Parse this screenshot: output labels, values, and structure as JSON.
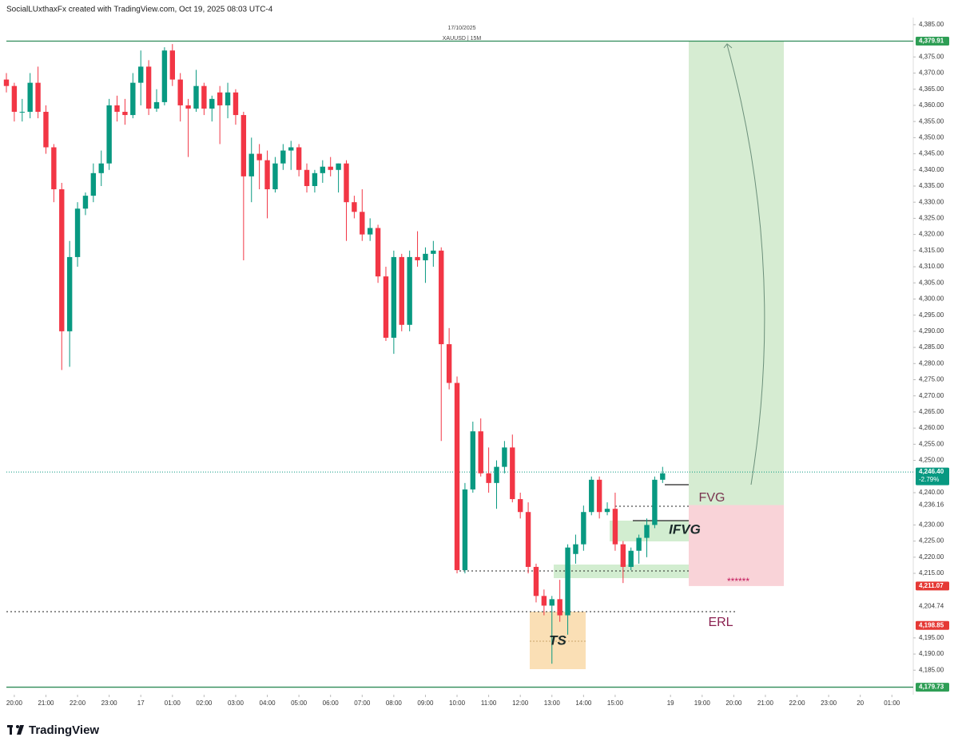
{
  "header": "SocialLUxthaxFx created with TradingView.com, Oct 19, 2025 08:03 UTC-4",
  "footer": "TradingView",
  "chart_data": {
    "type": "candlestick",
    "date": "17/10/2025",
    "symbol": "XAUUSD | 15M",
    "up_color": "#089981",
    "down_color": "#f23645",
    "annotations": {
      "fvg": "FVG",
      "ifvg": "IFVG",
      "erl": "ERL",
      "ts": "TS",
      "stars": "******"
    },
    "x": [
      -1,
      0,
      1,
      2,
      3,
      4,
      5,
      6,
      7,
      8,
      9,
      10,
      11,
      12,
      13,
      14,
      15,
      16,
      17,
      18,
      19,
      20,
      21,
      22,
      23,
      24,
      25,
      26,
      27,
      28,
      29,
      30,
      31,
      32,
      33,
      34,
      35,
      36,
      37,
      38,
      39,
      40,
      41,
      42,
      43,
      44,
      45,
      46,
      47,
      48,
      49,
      50,
      51,
      52,
      53,
      54,
      55,
      56,
      57,
      58,
      59,
      60,
      61,
      62,
      63,
      64,
      65,
      66,
      67,
      68,
      69,
      70,
      71,
      72,
      73,
      74,
      75,
      76,
      77,
      78,
      79,
      80,
      81,
      82
    ],
    "open": [
      4368,
      4366,
      4358,
      4358,
      4367,
      4358,
      4347,
      4334,
      4290,
      4313,
      4328,
      4332,
      4339,
      4342,
      4360,
      4358,
      4357,
      4367,
      4372,
      4359,
      4361,
      4377,
      4368,
      4360,
      4359,
      4366,
      4359,
      4364,
      4360,
      4364,
      4357,
      4338,
      4345,
      4343,
      4334,
      4342,
      4346,
      4347,
      4340,
      4335,
      4339,
      4341,
      4340,
      4342,
      4330,
      4327,
      4320,
      4322,
      4307,
      4288,
      4313,
      4292,
      4313,
      4312,
      4314,
      4315,
      4286,
      4274,
      4216,
      4241,
      4259,
      4246,
      4243,
      4248,
      4254,
      4238,
      4234,
      4217,
      4208,
      4205,
      4207,
      4202,
      4221,
      4224,
      4234,
      4244,
      4234,
      4235,
      4224,
      4217,
      4222,
      4226,
      4230,
      4244
    ],
    "high": [
      4370,
      4367,
      4362,
      4370,
      4372,
      4360,
      4348,
      4336,
      4318,
      4330,
      4333,
      4342,
      4346,
      4362,
      4363,
      4362,
      4370,
      4377,
      4374,
      4365,
      4378,
      4379,
      4370,
      4362,
      4371,
      4367,
      4363,
      4366,
      4367,
      4365,
      4358,
      4350,
      4348,
      4346,
      4344,
      4348,
      4349,
      4348,
      4342,
      4340,
      4343,
      4344,
      4342,
      4343,
      4332,
      4334,
      4325,
      4323,
      4310,
      4315,
      4314,
      4315,
      4321,
      4316,
      4318,
      4316,
      4291,
      4276,
      4243,
      4262,
      4263,
      4254,
      4250,
      4256,
      4258,
      4240,
      4237,
      4218,
      4210,
      4208,
      4213,
      4224,
      4227,
      4236,
      4245,
      4245,
      4237,
      4240,
      4225,
      4223,
      4227,
      4232,
      4245,
      4248
    ],
    "low": [
      4364,
      4355,
      4355,
      4356,
      4356,
      4345,
      4330,
      4278,
      4279,
      4310,
      4326,
      4330,
      4335,
      4340,
      4355,
      4354,
      4356,
      4360,
      4357,
      4358,
      4360,
      4366,
      4355,
      4344,
      4358,
      4357,
      4355,
      4348,
      4356,
      4354,
      4312,
      4330,
      4334,
      4325,
      4333,
      4340,
      4340,
      4338,
      4333,
      4333,
      4336,
      4338,
      4333,
      4318,
      4325,
      4318,
      4318,
      4305,
      4287,
      4283,
      4290,
      4290,
      4310,
      4305,
      4310,
      4256,
      4272,
      4215,
      4215,
      4240,
      4245,
      4240,
      4235,
      4246,
      4237,
      4232,
      4215,
      4206,
      4202,
      4187,
      4200,
      4196,
      4218,
      4222,
      4233,
      4232,
      4233,
      4222,
      4212,
      4216,
      4218,
      4220,
      4229,
      4243
    ],
    "close": [
      4366,
      4358,
      4358,
      4367,
      4358,
      4347,
      4334,
      4290,
      4313,
      4328,
      4332,
      4339,
      4342,
      4360,
      4358,
      4357,
      4367,
      4372,
      4359,
      4361,
      4377,
      4368,
      4360,
      4359,
      4366,
      4359,
      4362,
      4360,
      4364,
      4357,
      4338,
      4345,
      4343,
      4334,
      4342,
      4346,
      4347,
      4340,
      4335,
      4339,
      4341,
      4340,
      4342,
      4330,
      4327,
      4320,
      4322,
      4307,
      4288,
      4313,
      4292,
      4313,
      4312,
      4314,
      4315,
      4286,
      4274,
      4216,
      4241,
      4259,
      4246,
      4243,
      4248,
      4254,
      4238,
      4234,
      4217,
      4208,
      4205,
      4207,
      4202,
      4223,
      4224,
      4234,
      4244,
      4234,
      4235,
      4224,
      4217,
      4222,
      4226,
      4230,
      4244,
      4246
    ],
    "xlim": [
      -1,
      113.5
    ],
    "xticks": [
      {
        "value": 0,
        "label": "20:00"
      },
      {
        "value": 4,
        "label": "21:00"
      },
      {
        "value": 8,
        "label": "22:00"
      },
      {
        "value": 12,
        "label": "23:00"
      },
      {
        "value": 16,
        "label": "17"
      },
      {
        "value": 20,
        "label": "01:00"
      },
      {
        "value": 24,
        "label": "02:00"
      },
      {
        "value": 28,
        "label": "03:00"
      },
      {
        "value": 32,
        "label": "04:00"
      },
      {
        "value": 36,
        "label": "05:00"
      },
      {
        "value": 40,
        "label": "06:00"
      },
      {
        "value": 44,
        "label": "07:00"
      },
      {
        "value": 48,
        "label": "08:00"
      },
      {
        "value": 52,
        "label": "09:00"
      },
      {
        "value": 56,
        "label": "10:00"
      },
      {
        "value": 60,
        "label": "11:00"
      },
      {
        "value": 64,
        "label": "12:00"
      },
      {
        "value": 68,
        "label": "13:00"
      },
      {
        "value": 72,
        "label": "14:00"
      },
      {
        "value": 76,
        "label": "15:00"
      },
      {
        "value": 83,
        "label": "19"
      },
      {
        "value": 87,
        "label": "19:00"
      },
      {
        "value": 91,
        "label": "20:00"
      },
      {
        "value": 95,
        "label": "21:00"
      },
      {
        "value": 99,
        "label": "22:00"
      },
      {
        "value": 103,
        "label": "23:00"
      },
      {
        "value": 107,
        "label": "20"
      },
      {
        "value": 111,
        "label": "01:00"
      }
    ],
    "ylim": [
      4177.4,
      4387.2
    ],
    "yticks": [
      {
        "value": 4385,
        "label": "4,385.00"
      },
      {
        "value": 4375,
        "label": "4,375.00"
      },
      {
        "value": 4370,
        "label": "4,370.00"
      },
      {
        "value": 4365,
        "label": "4,365.00"
      },
      {
        "value": 4360,
        "label": "4,360.00"
      },
      {
        "value": 4355,
        "label": "4,355.00"
      },
      {
        "value": 4350,
        "label": "4,350.00"
      },
      {
        "value": 4345,
        "label": "4,345.00"
      },
      {
        "value": 4340,
        "label": "4,340.00"
      },
      {
        "value": 4335,
        "label": "4,335.00"
      },
      {
        "value": 4330,
        "label": "4,330.00"
      },
      {
        "value": 4325,
        "label": "4,325.00"
      },
      {
        "value": 4320,
        "label": "4,320.00"
      },
      {
        "value": 4315,
        "label": "4,315.00"
      },
      {
        "value": 4310,
        "label": "4,310.00"
      },
      {
        "value": 4305,
        "label": "4,305.00"
      },
      {
        "value": 4300,
        "label": "4,300.00"
      },
      {
        "value": 4295,
        "label": "4,295.00"
      },
      {
        "value": 4290,
        "label": "4,290.00"
      },
      {
        "value": 4285,
        "label": "4,285.00"
      },
      {
        "value": 4280,
        "label": "4,280.00"
      },
      {
        "value": 4275,
        "label": "4,275.00"
      },
      {
        "value": 4270,
        "label": "4,270.00"
      },
      {
        "value": 4265,
        "label": "4,265.00"
      },
      {
        "value": 4260,
        "label": "4,260.00"
      },
      {
        "value": 4255,
        "label": "4,255.00"
      },
      {
        "value": 4250,
        "label": "4,250.00"
      },
      {
        "value": 4240,
        "label": "4,240.00"
      },
      {
        "value": 4230,
        "label": "4,230.00"
      },
      {
        "value": 4225,
        "label": "4,225.00"
      },
      {
        "value": 4220,
        "label": "4,220.00"
      },
      {
        "value": 4215,
        "label": "4,215.00"
      },
      {
        "value": 4195,
        "label": "4,195.00"
      },
      {
        "value": 4190,
        "label": "4,190.00"
      },
      {
        "value": 4185,
        "label": "4,185.00"
      }
    ],
    "grid": false,
    "price_labels": [
      {
        "value": 4379.91,
        "label": "4,379.91",
        "color": "#2e9e55"
      },
      {
        "value": 4246.4,
        "label": "4,246.40",
        "sub": "-2.79%",
        "color": "#089981"
      },
      {
        "value": 4236.16,
        "label": "4,236.16"
      },
      {
        "value": 4211.07,
        "label": "4,211.07",
        "color": "#e53935"
      },
      {
        "value": 4204.74,
        "label": "4,204.74"
      },
      {
        "value": 4198.85,
        "label": "4,198.85",
        "color": "#e53935"
      },
      {
        "value": 4179.73,
        "label": "4,179.73",
        "color": "#2e9e55"
      }
    ]
  }
}
